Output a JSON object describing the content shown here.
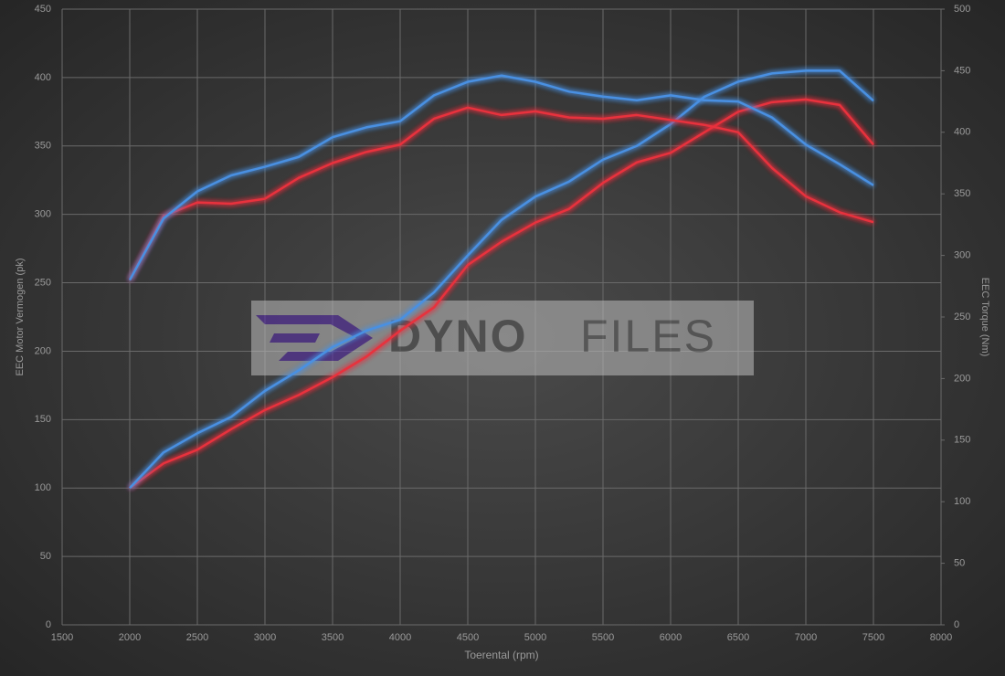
{
  "chart_data": {
    "type": "line",
    "x_label": "Toerental (rpm)",
    "y_label": "EEC Motor Vermogen (pk)",
    "y2_label": "EEC Torque (Nm)",
    "watermark": [
      "DYNO",
      "FILES"
    ],
    "x": [
      2000,
      2250,
      2500,
      2750,
      3000,
      3250,
      3500,
      3750,
      4000,
      4250,
      4500,
      4750,
      5000,
      5250,
      5500,
      5750,
      6000,
      6250,
      6500,
      6750,
      7000,
      7250,
      7500
    ],
    "series": [
      {
        "color": "#e8303c",
        "values": [
          100,
          118,
          128,
          143,
          157,
          168,
          181,
          196,
          215,
          232,
          263,
          280,
          294,
          304,
          323,
          338,
          345,
          360,
          375,
          382,
          384,
          380,
          351
        ]
      },
      {
        "color": "#4a90e2",
        "values": [
          100,
          126,
          140,
          152,
          171,
          186,
          203,
          215,
          223,
          243,
          270,
          296,
          313,
          324,
          340,
          350,
          366,
          386,
          397,
          403,
          405,
          405,
          383
        ]
      },
      {
        "color": "#e8303c",
        "axis": "y2",
        "values": [
          280,
          332,
          343,
          342,
          346,
          363,
          375,
          384,
          390,
          411,
          420,
          414,
          417,
          412,
          411,
          414,
          410,
          406,
          400,
          371,
          348,
          335,
          327
        ]
      },
      {
        "color": "#4a90e2",
        "axis": "y2",
        "values": [
          280,
          330,
          352,
          365,
          372,
          380,
          396,
          404,
          409,
          430,
          441,
          446,
          441,
          433,
          429,
          426,
          430,
          426,
          425,
          412,
          390,
          374,
          357
        ]
      }
    ],
    "xlim": [
      1500,
      8000
    ],
    "xticks": [
      1500,
      2000,
      2500,
      3000,
      3500,
      4000,
      4500,
      5000,
      5500,
      6000,
      6500,
      7000,
      7500,
      8000
    ],
    "ylim": [
      0,
      450
    ],
    "yticks": [
      0,
      50,
      100,
      150,
      200,
      250,
      300,
      350,
      400,
      450
    ],
    "y2lim": [
      0,
      500
    ],
    "y2ticks": [
      0,
      50,
      100,
      150,
      200,
      250,
      300,
      350,
      400,
      450,
      500
    ],
    "grid": true
  }
}
